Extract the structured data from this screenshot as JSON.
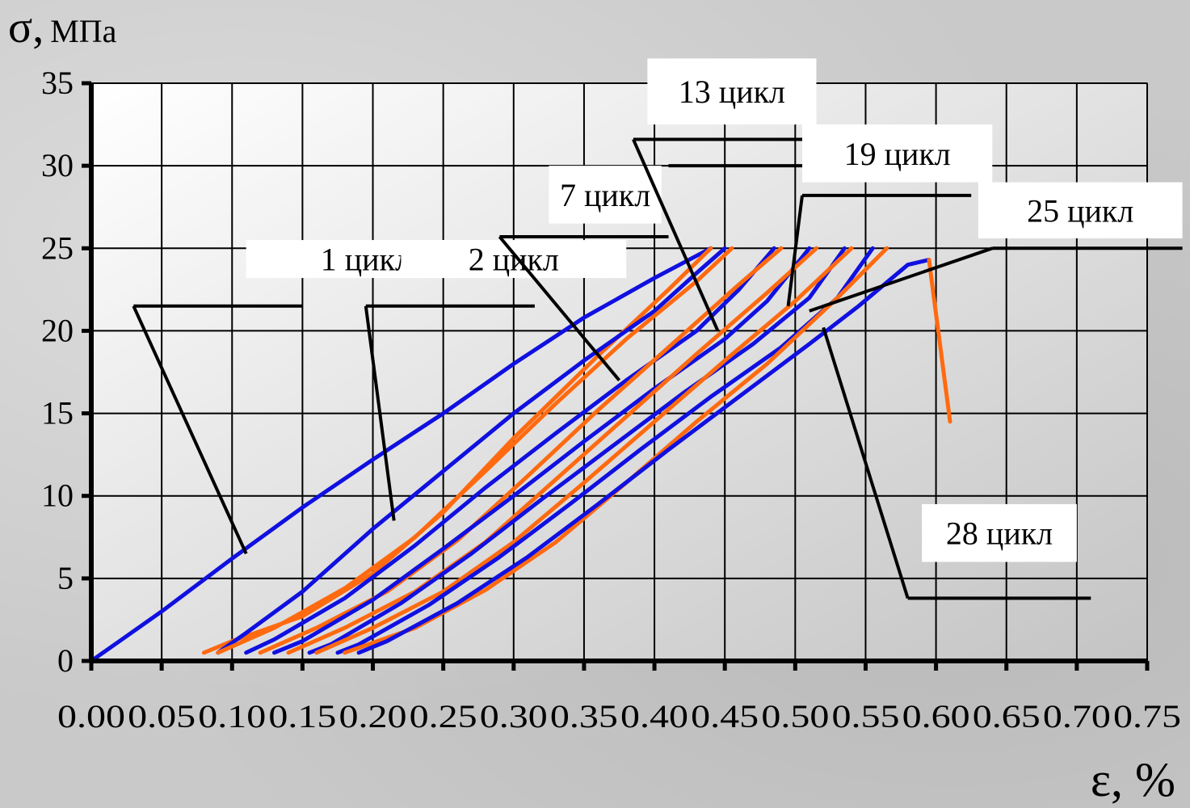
{
  "chart_data": {
    "type": "line",
    "ylabel_symbol": "σ,",
    "ylabel_unit": "МПа",
    "xlabel": "ε, %",
    "xlim": [
      0,
      0.75
    ],
    "ylim": [
      0,
      35
    ],
    "grid": true,
    "x_ticks": [
      "0.00",
      "0.05",
      "0.10",
      "0.15",
      "0.20",
      "0.25",
      "0.30",
      "0.35",
      "0.40",
      "0.45",
      "0.50",
      "0.55",
      "0.60",
      "0.65",
      "0.70",
      "0.75"
    ],
    "y_ticks": [
      "0",
      "5",
      "10",
      "15",
      "20",
      "25",
      "30",
      "35"
    ],
    "series": [
      {
        "color": "#1010e0",
        "points": [
          [
            0,
            0
          ],
          [
            0.02,
            1.2
          ],
          [
            0.05,
            3
          ],
          [
            0.1,
            6.2
          ],
          [
            0.15,
            9.3
          ],
          [
            0.2,
            12.2
          ],
          [
            0.25,
            15
          ],
          [
            0.3,
            18
          ],
          [
            0.35,
            20.8
          ],
          [
            0.4,
            23.2
          ],
          [
            0.44,
            25
          ]
        ]
      },
      {
        "color": "#ff6a10",
        "points": [
          [
            0.44,
            25
          ],
          [
            0.41,
            22.5
          ],
          [
            0.36,
            18.5
          ],
          [
            0.3,
            13.5
          ],
          [
            0.25,
            9
          ],
          [
            0.2,
            5.3
          ],
          [
            0.15,
            2.7
          ],
          [
            0.1,
            1.2
          ],
          [
            0.08,
            0.5
          ]
        ]
      },
      {
        "color": "#1010e0",
        "points": [
          [
            0.09,
            0.5
          ],
          [
            0.11,
            1.7
          ],
          [
            0.15,
            4.2
          ],
          [
            0.2,
            8
          ],
          [
            0.25,
            11.5
          ],
          [
            0.3,
            15
          ],
          [
            0.35,
            18.2
          ],
          [
            0.4,
            21.2
          ],
          [
            0.43,
            23.5
          ],
          [
            0.45,
            25
          ]
        ]
      },
      {
        "color": "#ff6a10",
        "points": [
          [
            0.455,
            25
          ],
          [
            0.43,
            23
          ],
          [
            0.38,
            19.5
          ],
          [
            0.33,
            15.6
          ],
          [
            0.28,
            11.5
          ],
          [
            0.23,
            7.5
          ],
          [
            0.18,
            4.4
          ],
          [
            0.13,
            2
          ],
          [
            0.09,
            0.5
          ]
        ]
      },
      {
        "color": "#1010e0",
        "points": [
          [
            0.11,
            0.5
          ],
          [
            0.13,
            1.3
          ],
          [
            0.18,
            3.8
          ],
          [
            0.23,
            7
          ],
          [
            0.28,
            10.5
          ],
          [
            0.33,
            13.8
          ],
          [
            0.38,
            17
          ],
          [
            0.43,
            20
          ],
          [
            0.46,
            22.5
          ],
          [
            0.485,
            25
          ]
        ]
      },
      {
        "color": "#ff6a10",
        "points": [
          [
            0.49,
            25
          ],
          [
            0.46,
            22.8
          ],
          [
            0.41,
            19
          ],
          [
            0.36,
            15.2
          ],
          [
            0.31,
            11.2
          ],
          [
            0.26,
            7.3
          ],
          [
            0.21,
            4.2
          ],
          [
            0.16,
            2
          ],
          [
            0.12,
            0.5
          ]
        ]
      },
      {
        "color": "#1010e0",
        "points": [
          [
            0.13,
            0.5
          ],
          [
            0.15,
            1.2
          ],
          [
            0.2,
            3.7
          ],
          [
            0.25,
            6.8
          ],
          [
            0.3,
            10
          ],
          [
            0.35,
            13.3
          ],
          [
            0.4,
            16.5
          ],
          [
            0.45,
            19.5
          ],
          [
            0.48,
            21.8
          ],
          [
            0.51,
            25
          ]
        ]
      },
      {
        "color": "#ff6a10",
        "points": [
          [
            0.515,
            25
          ],
          [
            0.48,
            22.3
          ],
          [
            0.43,
            18.6
          ],
          [
            0.38,
            14.8
          ],
          [
            0.33,
            11
          ],
          [
            0.28,
            7.2
          ],
          [
            0.23,
            4.2
          ],
          [
            0.18,
            2
          ],
          [
            0.14,
            0.5
          ]
        ]
      },
      {
        "color": "#1010e0",
        "points": [
          [
            0.155,
            0.5
          ],
          [
            0.17,
            1
          ],
          [
            0.22,
            3.5
          ],
          [
            0.27,
            6.5
          ],
          [
            0.32,
            9.8
          ],
          [
            0.37,
            13
          ],
          [
            0.42,
            16.2
          ],
          [
            0.47,
            19.2
          ],
          [
            0.51,
            22
          ],
          [
            0.535,
            25
          ]
        ]
      },
      {
        "color": "#ff6a10",
        "points": [
          [
            0.54,
            25
          ],
          [
            0.5,
            21.8
          ],
          [
            0.45,
            18.2
          ],
          [
            0.4,
            14.5
          ],
          [
            0.35,
            10.8
          ],
          [
            0.3,
            7.2
          ],
          [
            0.25,
            4.2
          ],
          [
            0.2,
            2
          ],
          [
            0.16,
            0.5
          ]
        ]
      },
      {
        "color": "#1010e0",
        "points": [
          [
            0.175,
            0.5
          ],
          [
            0.19,
            1
          ],
          [
            0.24,
            3.4
          ],
          [
            0.29,
            6.3
          ],
          [
            0.34,
            9.5
          ],
          [
            0.39,
            12.8
          ],
          [
            0.44,
            16
          ],
          [
            0.49,
            19
          ],
          [
            0.53,
            22
          ],
          [
            0.555,
            25
          ]
        ]
      },
      {
        "color": "#ff6a10",
        "points": [
          [
            0.565,
            25
          ],
          [
            0.53,
            22
          ],
          [
            0.48,
            18
          ],
          [
            0.43,
            14.5
          ],
          [
            0.38,
            10.8
          ],
          [
            0.33,
            7.2
          ],
          [
            0.28,
            4.3
          ],
          [
            0.23,
            2
          ],
          [
            0.18,
            0.5
          ]
        ]
      },
      {
        "color": "#1010e0",
        "points": [
          [
            0.19,
            0.5
          ],
          [
            0.21,
            1.2
          ],
          [
            0.26,
            3.5
          ],
          [
            0.31,
            6.3
          ],
          [
            0.36,
            9.5
          ],
          [
            0.41,
            12.8
          ],
          [
            0.46,
            16
          ],
          [
            0.51,
            19.2
          ],
          [
            0.545,
            21.5
          ],
          [
            0.58,
            24
          ],
          [
            0.595,
            24.3
          ]
        ]
      },
      {
        "color": "#ff6a10",
        "points": [
          [
            0.595,
            24.3
          ],
          [
            0.61,
            14.5
          ]
        ]
      }
    ],
    "annotations": [
      {
        "text": "1 цикл",
        "box": [
          0.11,
          0.28,
          25.5,
          23.2
        ],
        "leader": [
          [
            0.03,
            21.5
          ],
          [
            0.15,
            21.5
          ]
        ],
        "tail": [
          [
            0.03,
            21.5
          ],
          [
            0.11,
            6.5
          ]
        ]
      },
      {
        "text": "2 цикл",
        "box": [
          0.22,
          0.38,
          25.5,
          23.2
        ],
        "leader": [
          [
            0.195,
            21.5
          ],
          [
            0.315,
            21.5
          ]
        ],
        "tail": [
          [
            0.195,
            21.5
          ],
          [
            0.215,
            8.5
          ]
        ]
      },
      {
        "text": "7 цикл",
        "box": [
          0.325,
          0.405,
          30,
          26.5
        ],
        "leader": [
          [
            0.29,
            25.7
          ],
          [
            0.41,
            25.7
          ]
        ],
        "tail": [
          [
            0.29,
            25.7
          ],
          [
            0.375,
            17
          ]
        ]
      },
      {
        "text": "13 цикл",
        "box": [
          0.395,
          0.515,
          36.5,
          32.5
        ],
        "leader": [
          [
            0.385,
            31.6
          ],
          [
            0.505,
            31.6
          ]
        ],
        "tail": [
          [
            0.385,
            31.6
          ],
          [
            0.445,
            20
          ]
        ]
      },
      {
        "text": "19 цикл",
        "box": [
          0.505,
          0.64,
          32.5,
          29
        ],
        "leader": [
          [
            0.41,
            30
          ],
          [
            0.52,
            30
          ]
        ],
        "tail": [
          [
            0.505,
            28.2
          ],
          [
            0.495,
            21.5
          ]
        ],
        "leader2": [
          [
            0.505,
            28.2
          ],
          [
            0.625,
            28.2
          ]
        ]
      },
      {
        "text": "25 цикл",
        "box": [
          0.63,
          0.775,
          29,
          25.6
        ],
        "leader": [
          [
            0.64,
            25
          ],
          [
            0.775,
            25
          ]
        ],
        "tail": [
          [
            0.64,
            25
          ],
          [
            0.51,
            21.2
          ]
        ]
      },
      {
        "text": "28 цикл",
        "box": [
          0.59,
          0.7,
          9.5,
          6
        ],
        "leader": [
          [
            0.58,
            3.8
          ],
          [
            0.71,
            3.8
          ]
        ],
        "tail": [
          [
            0.58,
            3.8
          ],
          [
            0.52,
            20.2
          ]
        ]
      }
    ]
  }
}
